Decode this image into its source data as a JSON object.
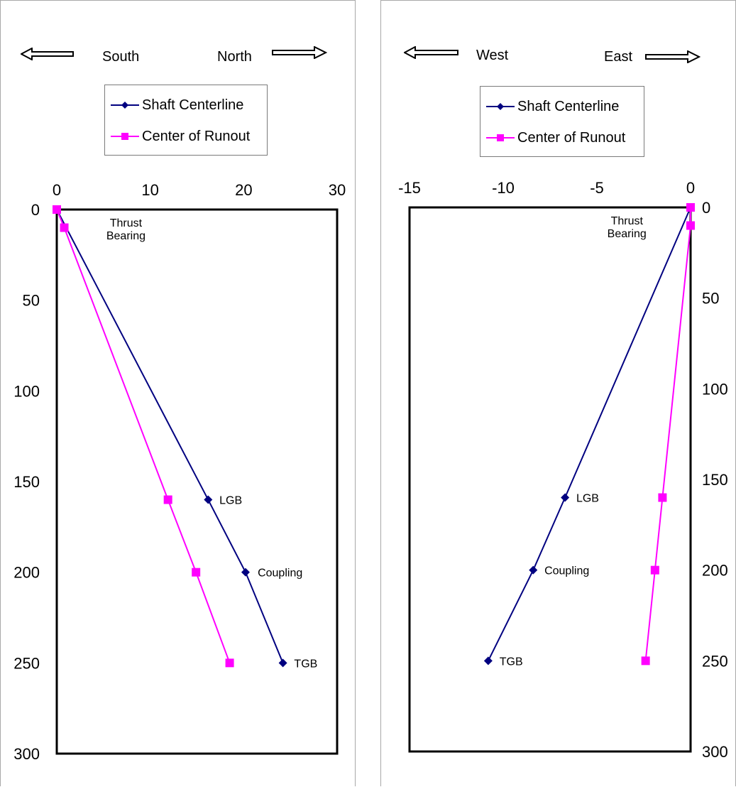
{
  "colors": {
    "shaft": "#000080",
    "runout": "#ff00ff"
  },
  "panels": [
    {
      "direction": {
        "left": "South",
        "right": "North"
      },
      "legend": [
        "Shaft Centerline",
        "Center of Runout"
      ]
    },
    {
      "direction": {
        "left": "West",
        "right": "East"
      },
      "legend": [
        "Shaft Centerline",
        "Center of Runout"
      ]
    }
  ],
  "chart_data": [
    {
      "type": "line",
      "xlim": [
        0,
        30
      ],
      "ylim": [
        0,
        300
      ],
      "y_reversed": true,
      "x_axis_position": "top",
      "y_axis_position": "left",
      "x_ticks": [
        "0",
        "10",
        "20",
        "30"
      ],
      "y_ticks": [
        "0",
        "50",
        "100",
        "150",
        "200",
        "250",
        "300"
      ],
      "grid": false,
      "legend_position": "top",
      "series": [
        {
          "name": "Shaft Centerline",
          "color": "#000080",
          "marker": "diamond",
          "points": [
            [
              0,
              0
            ],
            [
              16.2,
              160
            ],
            [
              20.2,
              200
            ],
            [
              24.2,
              250
            ]
          ]
        },
        {
          "name": "Center of Runout",
          "color": "#ff00ff",
          "marker": "square",
          "points": [
            [
              0,
              0
            ],
            [
              0.8,
              10
            ],
            [
              11.9,
              160
            ],
            [
              14.9,
              200
            ],
            [
              18.5,
              250
            ]
          ]
        }
      ],
      "annotations": [
        {
          "text": "Thrust Bearing",
          "lines": [
            "Thrust",
            "Bearing"
          ],
          "x": 7.4,
          "y": 7
        },
        {
          "text": "LGB",
          "x": 17.4,
          "y": 160
        },
        {
          "text": "Coupling",
          "x": 21.5,
          "y": 200
        },
        {
          "text": "TGB",
          "x": 25.4,
          "y": 250
        }
      ]
    },
    {
      "type": "line",
      "xlim": [
        -15,
        0
      ],
      "ylim": [
        0,
        300
      ],
      "y_reversed": true,
      "x_axis_position": "top",
      "y_axis_position": "right",
      "x_ticks": [
        "-15",
        "-10",
        "-5",
        "0"
      ],
      "y_ticks": [
        "0",
        "50",
        "100",
        "150",
        "200",
        "250",
        "300"
      ],
      "grid": false,
      "legend_position": "top",
      "series": [
        {
          "name": "Shaft Centerline",
          "color": "#000080",
          "marker": "diamond",
          "points": [
            [
              0,
              0
            ],
            [
              -6.7,
              160
            ],
            [
              -8.4,
              200
            ],
            [
              -10.8,
              250
            ]
          ]
        },
        {
          "name": "Center of Runout",
          "color": "#ff00ff",
          "marker": "square",
          "points": [
            [
              0,
              0
            ],
            [
              0,
              10
            ],
            [
              -1.5,
              160
            ],
            [
              -1.9,
              200
            ],
            [
              -2.4,
              250
            ]
          ]
        }
      ],
      "annotations": [
        {
          "text": "Thrust Bearing",
          "lines": [
            "Thrust",
            "Bearing"
          ],
          "x": -3.4,
          "y": 7
        },
        {
          "text": "LGB",
          "x": -6.1,
          "y": 160
        },
        {
          "text": "Coupling",
          "x": -7.8,
          "y": 200
        },
        {
          "text": "TGB",
          "x": -10.2,
          "y": 250
        }
      ]
    }
  ]
}
